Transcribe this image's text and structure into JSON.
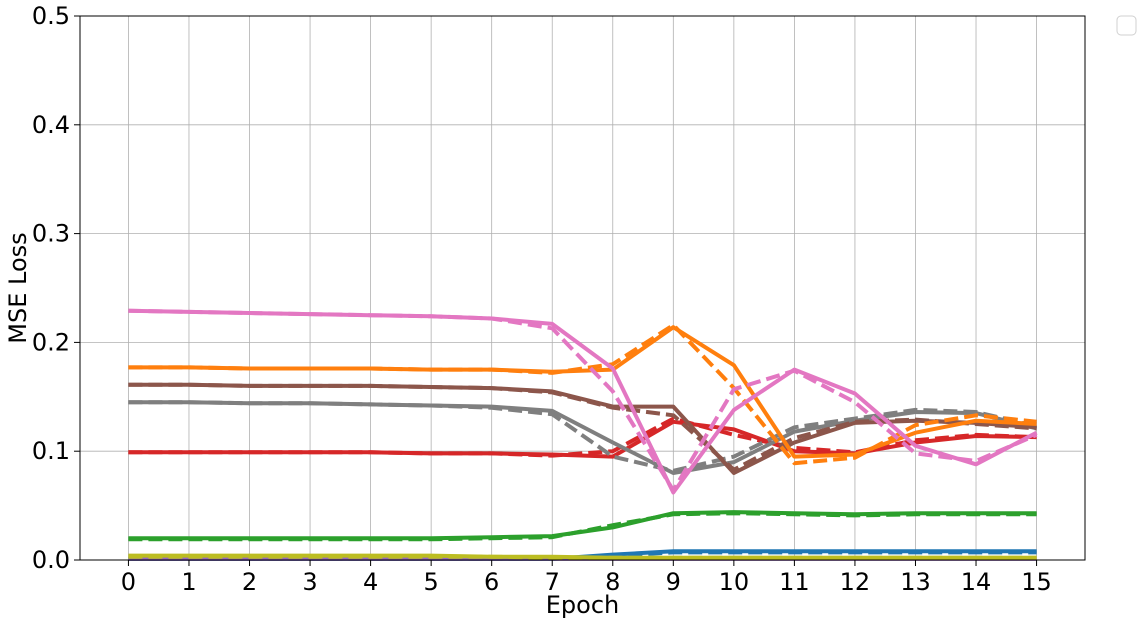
{
  "chart_data": {
    "type": "line",
    "xlabel": "Epoch",
    "ylabel": "MSE Loss",
    "ylim": [
      0,
      0.5
    ],
    "xlim": [
      -0.8,
      15.8
    ],
    "x": [
      0,
      1,
      2,
      3,
      4,
      5,
      6,
      7,
      8,
      9,
      10,
      11,
      12,
      13,
      14,
      15
    ],
    "x_ticks": [
      "0",
      "1",
      "2",
      "3",
      "4",
      "5",
      "6",
      "7",
      "8",
      "9",
      "10",
      "11",
      "12",
      "13",
      "14",
      "15"
    ],
    "y_ticks": [
      "0.0",
      "0.1",
      "0.2",
      "0.3",
      "0.4",
      "0.5"
    ],
    "y_tick_values": [
      0,
      0.1,
      0.2,
      0.3,
      0.4,
      0.5
    ],
    "grid": true,
    "legend": "top-right, empty",
    "series": [
      {
        "color": "#1f77b4",
        "style": "solid",
        "values": [
          0.001,
          0.001,
          0.001,
          0.001,
          0.001,
          0.001,
          0.001,
          0.001,
          0.005,
          0.008,
          0.008,
          0.008,
          0.008,
          0.008,
          0.008,
          0.008
        ]
      },
      {
        "color": "#1f77b4",
        "style": "dashed",
        "values": [
          0.001,
          0.001,
          0.001,
          0.001,
          0.001,
          0.001,
          0.001,
          0.001,
          0.004,
          0.007,
          0.007,
          0.007,
          0.007,
          0.007,
          0.007,
          0.007
        ]
      },
      {
        "color": "#9467bd",
        "style": "solid",
        "values": [
          0.001,
          0.001,
          0.001,
          0.001,
          0.001,
          0.001,
          0.001,
          0.001,
          0.001,
          0.001,
          0.001,
          0.001,
          0.001,
          0.001,
          0.001,
          0.001
        ]
      },
      {
        "color": "#bcbd22",
        "style": "solid",
        "values": [
          0.004,
          0.004,
          0.004,
          0.004,
          0.004,
          0.004,
          0.003,
          0.003,
          0.002,
          0.002,
          0.002,
          0.002,
          0.002,
          0.002,
          0.002,
          0.002
        ]
      },
      {
        "color": "#bcbd22",
        "style": "dashed",
        "values": [
          0.003,
          0.003,
          0.003,
          0.003,
          0.003,
          0.003,
          0.003,
          0.002,
          0.002,
          0.002,
          0.002,
          0.002,
          0.002,
          0.002,
          0.002,
          0.002
        ]
      },
      {
        "color": "#2ca02c",
        "style": "solid",
        "values": [
          0.02,
          0.02,
          0.02,
          0.02,
          0.02,
          0.02,
          0.021,
          0.022,
          0.03,
          0.043,
          0.044,
          0.043,
          0.042,
          0.043,
          0.043,
          0.043
        ]
      },
      {
        "color": "#2ca02c",
        "style": "dashed",
        "values": [
          0.019,
          0.019,
          0.019,
          0.019,
          0.019,
          0.019,
          0.02,
          0.021,
          0.032,
          0.042,
          0.043,
          0.042,
          0.041,
          0.042,
          0.042,
          0.042
        ]
      },
      {
        "color": "#d62728",
        "style": "solid",
        "values": [
          0.099,
          0.099,
          0.099,
          0.099,
          0.099,
          0.098,
          0.098,
          0.097,
          0.095,
          0.127,
          0.12,
          0.1,
          0.098,
          0.108,
          0.114,
          0.113
        ]
      },
      {
        "color": "#d62728",
        "style": "dashed",
        "values": [
          0.099,
          0.099,
          0.099,
          0.099,
          0.099,
          0.098,
          0.098,
          0.096,
          0.1,
          0.13,
          0.115,
          0.103,
          0.099,
          0.11,
          0.115,
          0.113
        ]
      },
      {
        "color": "#7f7f7f",
        "style": "solid",
        "values": [
          0.145,
          0.145,
          0.144,
          0.144,
          0.143,
          0.142,
          0.141,
          0.137,
          0.108,
          0.08,
          0.09,
          0.118,
          0.128,
          0.136,
          0.135,
          0.121
        ]
      },
      {
        "color": "#7f7f7f",
        "style": "dashed",
        "values": [
          0.145,
          0.145,
          0.144,
          0.144,
          0.143,
          0.142,
          0.14,
          0.134,
          0.095,
          0.082,
          0.095,
          0.122,
          0.13,
          0.138,
          0.136,
          0.123
        ]
      },
      {
        "color": "#8c564b",
        "style": "solid",
        "values": [
          0.161,
          0.161,
          0.16,
          0.16,
          0.16,
          0.159,
          0.158,
          0.155,
          0.141,
          0.141,
          0.08,
          0.108,
          0.126,
          0.128,
          0.126,
          0.122
        ]
      },
      {
        "color": "#8c564b",
        "style": "dashed",
        "values": [
          0.161,
          0.161,
          0.16,
          0.16,
          0.16,
          0.159,
          0.158,
          0.154,
          0.14,
          0.133,
          0.083,
          0.112,
          0.127,
          0.129,
          0.125,
          0.121
        ]
      },
      {
        "color": "#ff7f0e",
        "style": "solid",
        "values": [
          0.177,
          0.177,
          0.176,
          0.176,
          0.176,
          0.175,
          0.175,
          0.173,
          0.175,
          0.214,
          0.179,
          0.095,
          0.097,
          0.117,
          0.128,
          0.125
        ]
      },
      {
        "color": "#ff7f0e",
        "style": "dashed",
        "values": [
          0.177,
          0.177,
          0.176,
          0.176,
          0.176,
          0.175,
          0.175,
          0.172,
          0.18,
          0.216,
          0.158,
          0.089,
          0.094,
          0.124,
          0.133,
          0.127
        ]
      },
      {
        "color": "#e377c2",
        "style": "solid",
        "values": [
          0.229,
          0.228,
          0.227,
          0.226,
          0.225,
          0.224,
          0.222,
          0.217,
          0.176,
          0.062,
          0.138,
          0.175,
          0.153,
          0.105,
          0.088,
          0.117
        ]
      },
      {
        "color": "#e377c2",
        "style": "dashed",
        "values": [
          0.229,
          0.228,
          0.227,
          0.226,
          0.225,
          0.224,
          0.222,
          0.213,
          0.155,
          0.064,
          0.157,
          0.174,
          0.145,
          0.098,
          0.091,
          0.115
        ]
      }
    ]
  }
}
